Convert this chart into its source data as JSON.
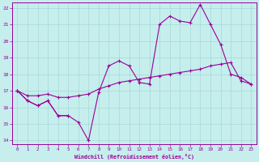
{
  "xlabel": "Windchill (Refroidissement éolien,°C)",
  "xlim": [
    -0.5,
    23.5
  ],
  "ylim": [
    13.8,
    22.3
  ],
  "yticks": [
    14,
    15,
    16,
    17,
    18,
    19,
    20,
    21,
    22
  ],
  "xticks": [
    0,
    1,
    2,
    3,
    4,
    5,
    6,
    7,
    8,
    9,
    10,
    11,
    12,
    13,
    14,
    15,
    16,
    17,
    18,
    19,
    20,
    21,
    22,
    23
  ],
  "background_color": "#c5eeed",
  "grid_color": "#a8d8d8",
  "line_color": "#990099",
  "line1_y": [
    17.0,
    16.4,
    16.1,
    16.4,
    15.5,
    15.5,
    15.1,
    14.0,
    16.9,
    18.5,
    18.8,
    18.5,
    17.5,
    17.4,
    21.0,
    21.5,
    21.2,
    21.1,
    22.2,
    21.0,
    19.8,
    18.0,
    17.8,
    17.4
  ],
  "line2_y": [
    17.0,
    16.7,
    16.7,
    16.8,
    16.6,
    16.6,
    16.7,
    16.8,
    17.1,
    17.3,
    17.5,
    17.6,
    17.7,
    17.8,
    17.9,
    18.0,
    18.1,
    18.2,
    18.3,
    18.5,
    18.6,
    18.7,
    17.6,
    17.4
  ],
  "line3_y": [
    17.0,
    16.4,
    16.1,
    16.4,
    15.5,
    15.5,
    null,
    null,
    null,
    null,
    null,
    null,
    null,
    null,
    null,
    null,
    null,
    null,
    null,
    null,
    null,
    null,
    null,
    null
  ],
  "figsize": [
    3.2,
    2.0
  ],
  "dpi": 100
}
